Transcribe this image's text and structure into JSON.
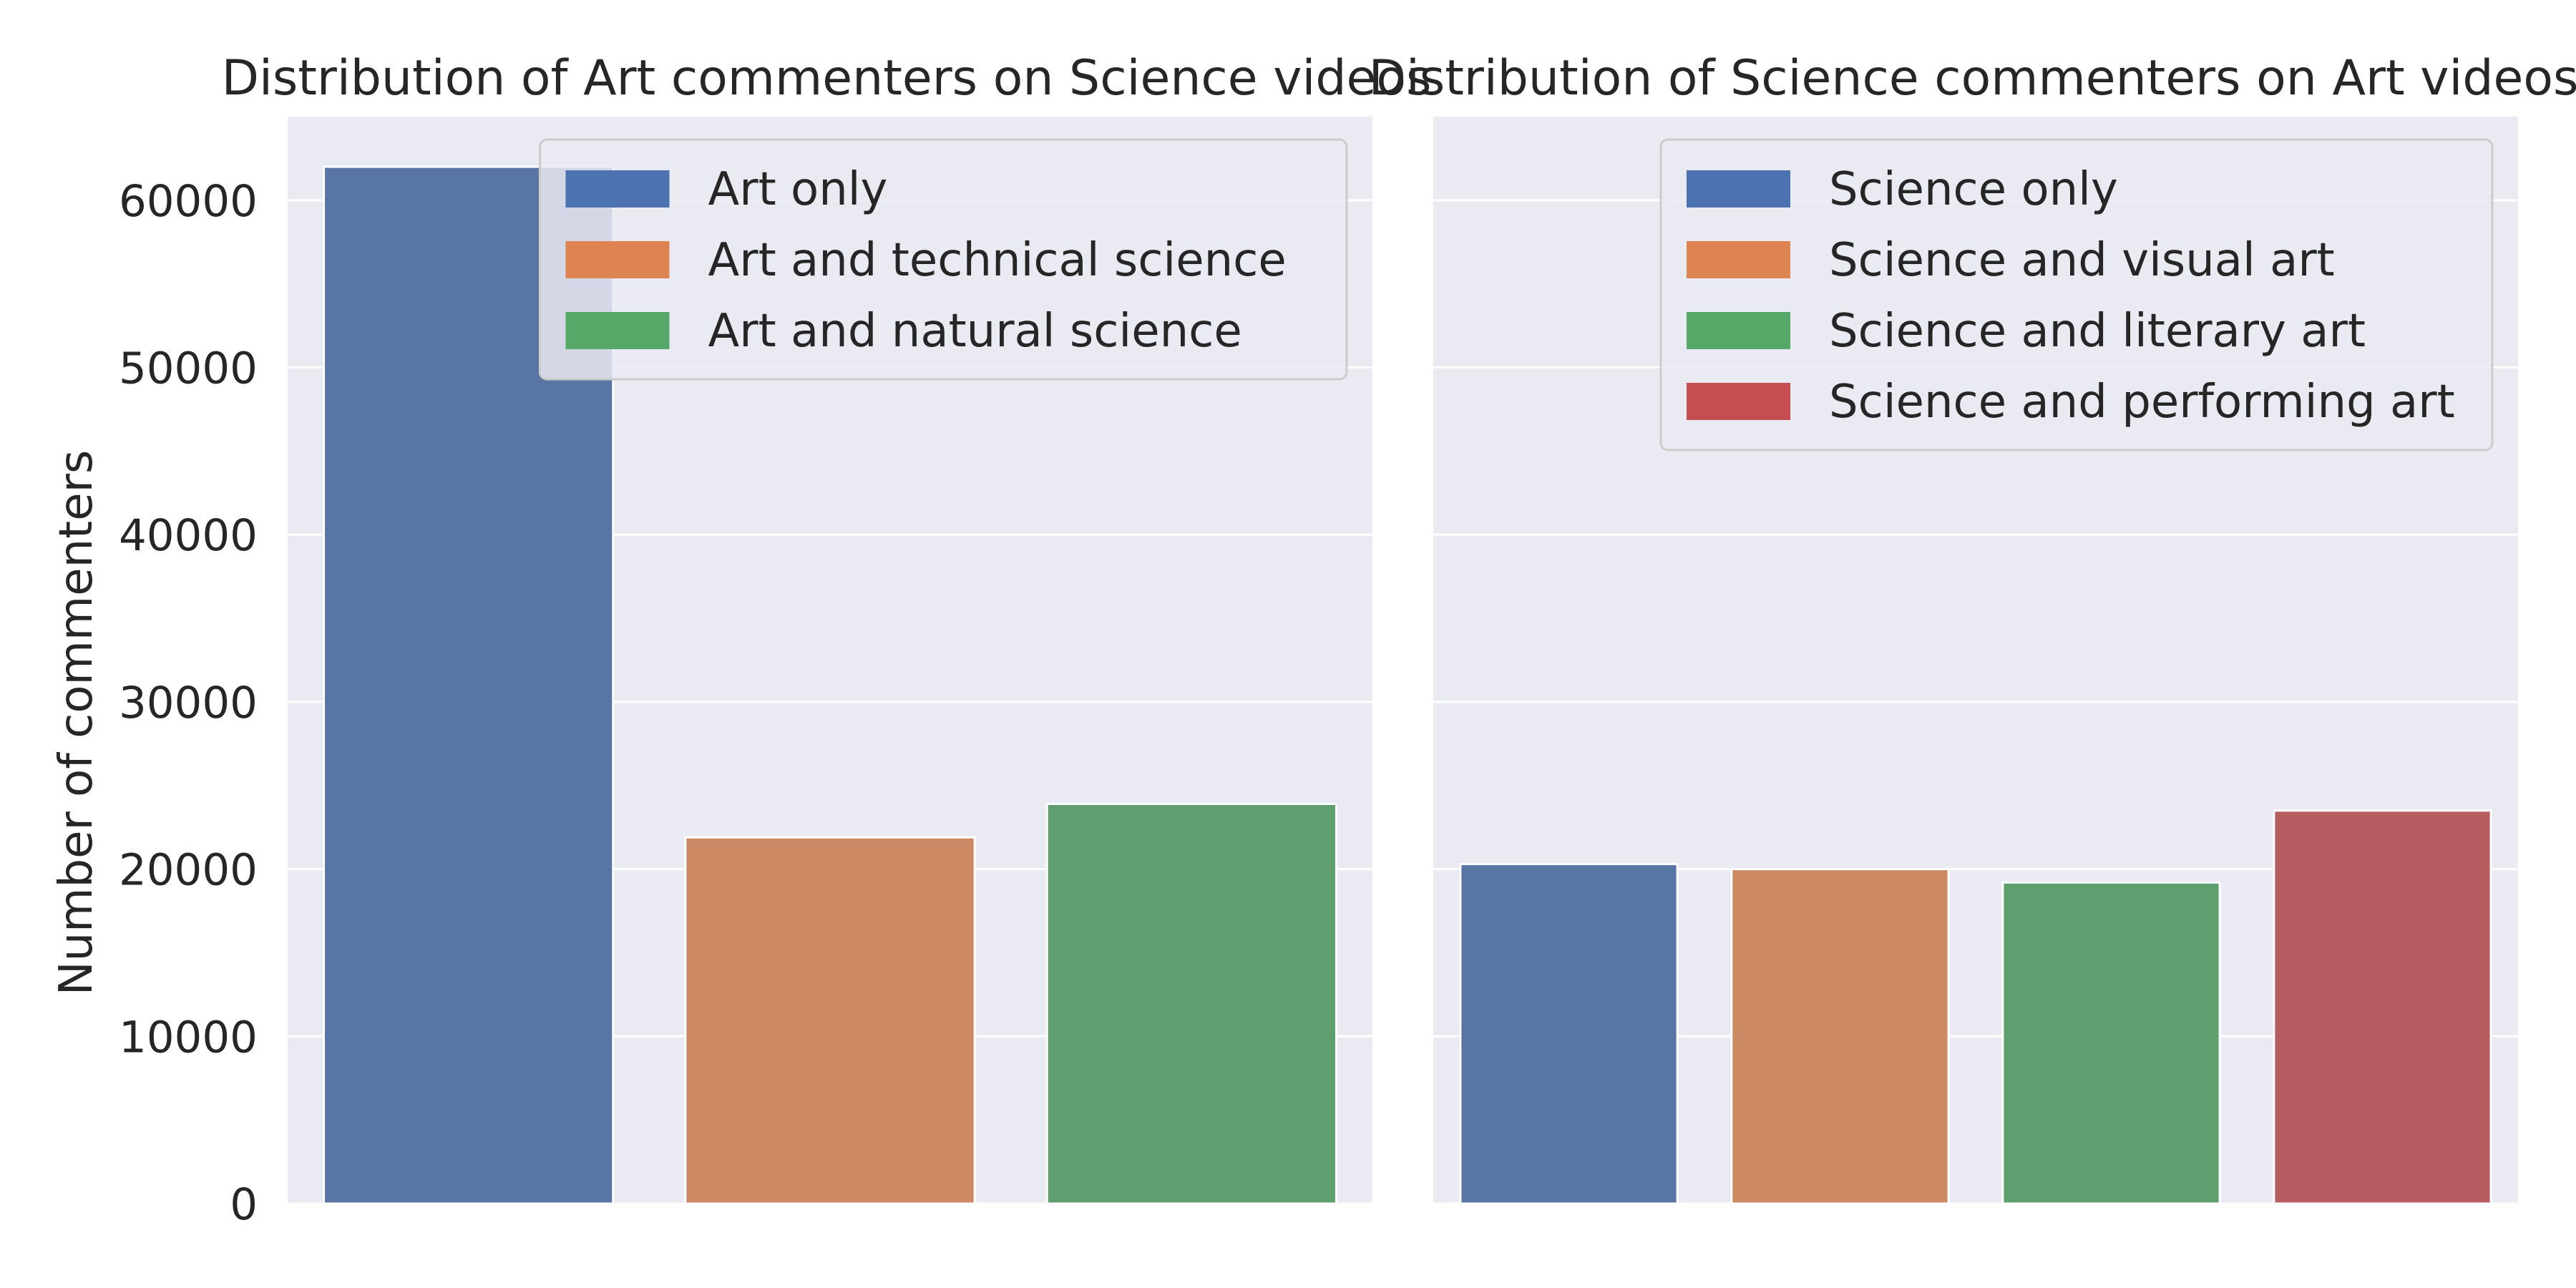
{
  "figure": {
    "ylabel": "Number of commenters"
  },
  "chart_data": [
    {
      "type": "bar",
      "title": "Distribution of Art commenters on Science videos",
      "xlabel": "",
      "ylabel": "Number of commenters",
      "ylim": [
        0,
        65000
      ],
      "yticks": [
        0,
        10000,
        20000,
        30000,
        40000,
        50000,
        60000
      ],
      "grid": true,
      "legend_position": "top-right",
      "categories": [
        "Art only",
        "Art and technical science",
        "Art and natural science"
      ],
      "values": [
        62000,
        21900,
        23900
      ],
      "bar_colors": [
        "#5975a4",
        "#cc8963",
        "#5f9e6e"
      ],
      "legend": [
        {
          "label": "Art only",
          "color": "#4c72b0"
        },
        {
          "label": "Art and technical science",
          "color": "#dd8452"
        },
        {
          "label": "Art and natural science",
          "color": "#55a868"
        }
      ]
    },
    {
      "type": "bar",
      "title": "Distribution of Science commenters on Art videos",
      "xlabel": "",
      "ylabel": "",
      "ylim": [
        0,
        65000
      ],
      "yticks": [
        0,
        10000,
        20000,
        30000,
        40000,
        50000,
        60000
      ],
      "grid": true,
      "legend_position": "top-right",
      "categories": [
        "Science only",
        "Science and visual art",
        "Science and literary art",
        "Science and performing art"
      ],
      "values": [
        20300,
        20000,
        19200,
        23500
      ],
      "bar_colors": [
        "#5975a4",
        "#cc8963",
        "#5f9e6e",
        "#b55d60"
      ],
      "legend": [
        {
          "label": "Science only",
          "color": "#4c72b0"
        },
        {
          "label": "Science and visual art",
          "color": "#dd8452"
        },
        {
          "label": "Science and literary art",
          "color": "#55a868"
        },
        {
          "label": "Science and performing art",
          "color": "#c44e52"
        }
      ]
    }
  ]
}
